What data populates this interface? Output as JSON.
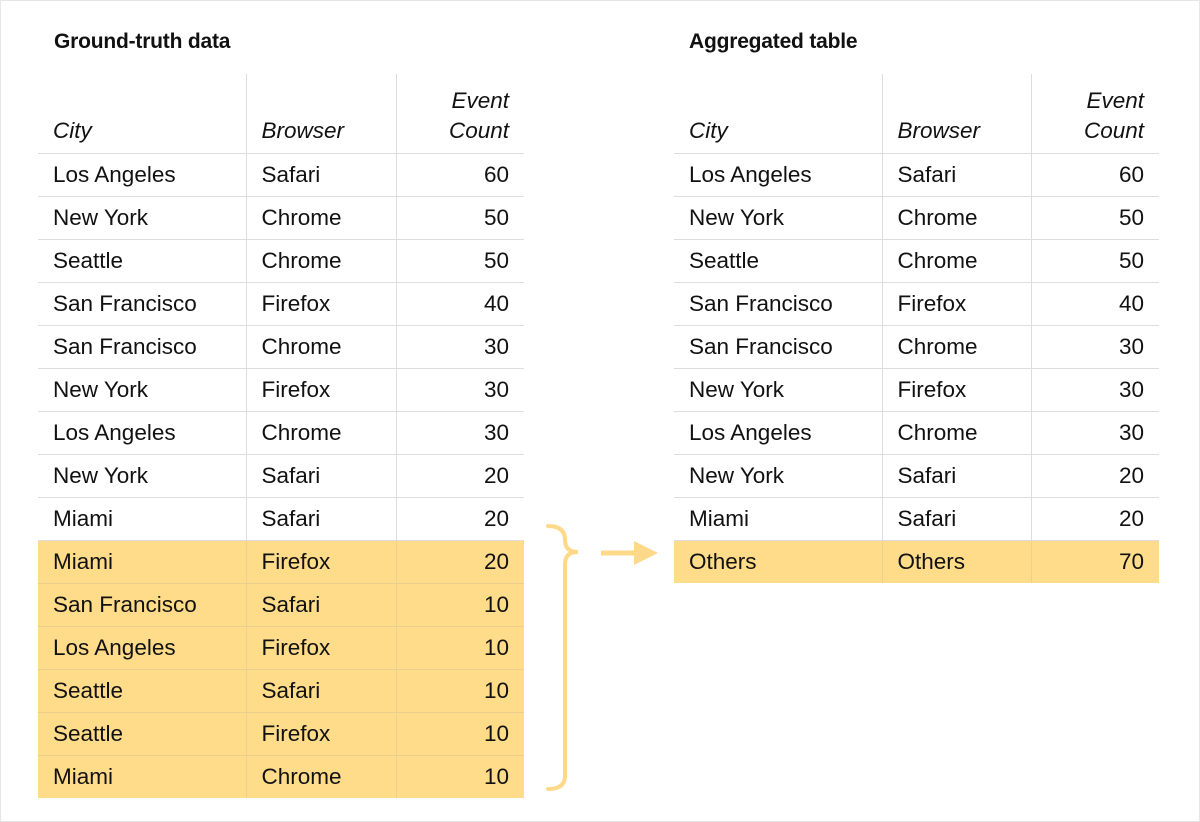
{
  "left": {
    "title": "Ground-truth data",
    "headers": [
      "City",
      "Browser",
      "Event Count"
    ],
    "rows": [
      [
        "Los Angeles",
        "Safari",
        "60",
        false
      ],
      [
        "New York",
        "Chrome",
        "50",
        false
      ],
      [
        "Seattle",
        "Chrome",
        "50",
        false
      ],
      [
        "San Francisco",
        "Firefox",
        "40",
        false
      ],
      [
        "San Francisco",
        "Chrome",
        "30",
        false
      ],
      [
        "New York",
        "Firefox",
        "30",
        false
      ],
      [
        "Los Angeles",
        "Chrome",
        "30",
        false
      ],
      [
        "New York",
        "Safari",
        "20",
        false
      ],
      [
        "Miami",
        "Safari",
        "20",
        false
      ],
      [
        "Miami",
        "Firefox",
        "20",
        true
      ],
      [
        "San Francisco",
        "Safari",
        "10",
        true
      ],
      [
        "Los Angeles",
        "Firefox",
        "10",
        true
      ],
      [
        "Seattle",
        "Safari",
        "10",
        true
      ],
      [
        "Seattle",
        "Firefox",
        "10",
        true
      ],
      [
        "Miami",
        "Chrome",
        "10",
        true
      ]
    ]
  },
  "right": {
    "title": "Aggregated table",
    "headers": [
      "City",
      "Browser",
      "Event Count"
    ],
    "rows": [
      [
        "Los Angeles",
        "Safari",
        "60",
        false
      ],
      [
        "New York",
        "Chrome",
        "50",
        false
      ],
      [
        "Seattle",
        "Chrome",
        "50",
        false
      ],
      [
        "San Francisco",
        "Firefox",
        "40",
        false
      ],
      [
        "San Francisco",
        "Chrome",
        "30",
        false
      ],
      [
        "New York",
        "Firefox",
        "30",
        false
      ],
      [
        "Los Angeles",
        "Chrome",
        "30",
        false
      ],
      [
        "New York",
        "Safari",
        "20",
        false
      ],
      [
        "Miami",
        "Safari",
        "20",
        false
      ],
      [
        "Others",
        "Others",
        "70",
        true
      ]
    ]
  },
  "colors": {
    "highlight": "#ffdc8a",
    "connector": "#ffd98a"
  },
  "icons": {
    "brace": "curly-brace-icon",
    "arrow": "arrow-right-icon"
  }
}
